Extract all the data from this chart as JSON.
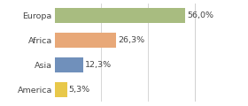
{
  "categories": [
    "America",
    "Asia",
    "Africa",
    "Europa"
  ],
  "values": [
    5.3,
    12.3,
    26.3,
    56.0
  ],
  "labels": [
    "5,3%",
    "12,3%",
    "26,3%",
    "56,0%"
  ],
  "bar_colors": [
    "#e8c84a",
    "#7090bb",
    "#e8a878",
    "#a8bc80"
  ],
  "background_color": "#ffffff",
  "xlim": [
    0,
    70
  ],
  "bar_height": 0.62,
  "label_fontsize": 6.8,
  "tick_fontsize": 6.8,
  "gridlines": [
    20,
    40,
    60
  ],
  "grid_color": "#d0d0d0"
}
